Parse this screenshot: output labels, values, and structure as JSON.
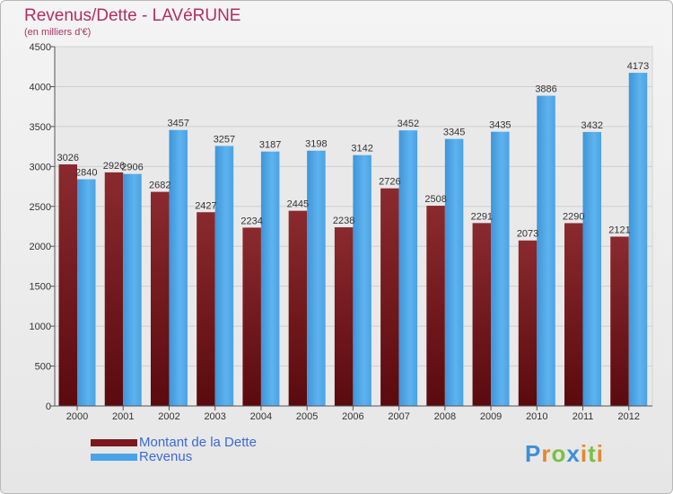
{
  "header": {
    "title": "Revenus/Dette - LAVéRUNE",
    "subtitle": "(en milliers d'€)"
  },
  "chart_data": {
    "type": "bar",
    "categories": [
      "2000",
      "2001",
      "2002",
      "2003",
      "2004",
      "2005",
      "2006",
      "2007",
      "2008",
      "2009",
      "2010",
      "2011",
      "2012"
    ],
    "series": [
      {
        "name": "Montant de la Dette",
        "color": "#7a1a1e",
        "values": [
          3026,
          2926,
          2682,
          2427,
          2234,
          2445,
          2238,
          2726,
          2508,
          2291,
          2073,
          2290,
          2121
        ]
      },
      {
        "name": "Revenus",
        "color": "#4aa3e6",
        "values": [
          2840,
          2906,
          3457,
          3257,
          3187,
          3198,
          3142,
          3452,
          3345,
          3435,
          3886,
          3432,
          4173
        ]
      }
    ],
    "ylim": [
      0,
      4500
    ],
    "yticks": [
      0,
      500,
      1000,
      1500,
      2000,
      2500,
      3000,
      3500,
      4000,
      4500
    ],
    "grid": true,
    "legend_position": "bottom-left"
  },
  "legend": [
    {
      "label": "Montant de la Dette",
      "color": "#7a1a1e"
    },
    {
      "label": "Revenus",
      "color": "#4aa3e6"
    }
  ],
  "logo": {
    "letters": [
      {
        "ch": "P",
        "color": "#3e8fd6"
      },
      {
        "ch": "r",
        "color": "#e1892c"
      },
      {
        "ch": "o",
        "color": "#7ac043"
      },
      {
        "ch": "x",
        "color": "#3e8fd6"
      },
      {
        "ch": "i",
        "color": "#e1892c"
      },
      {
        "ch": "t",
        "color": "#7ac043"
      },
      {
        "ch": "i",
        "color": "#e1892c"
      }
    ]
  }
}
